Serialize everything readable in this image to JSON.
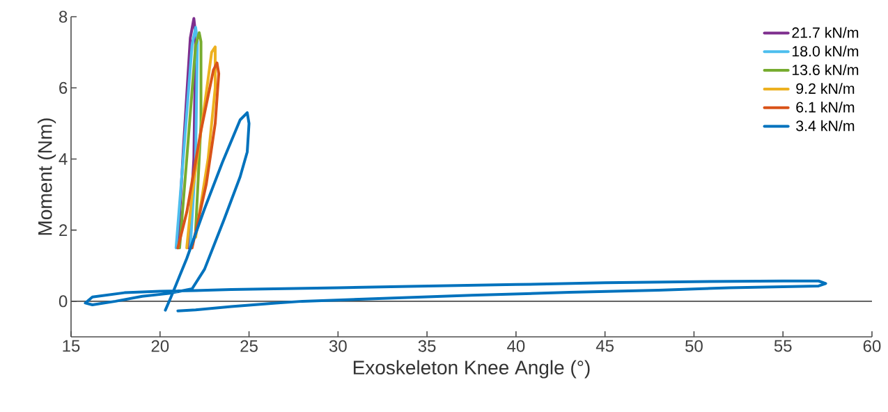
{
  "chart_data": {
    "type": "line",
    "xlabel": "Exoskeleton Knee Angle (°)",
    "ylabel": "Moment (Nm)",
    "xlim": [
      15,
      60
    ],
    "ylim": [
      -1,
      8
    ],
    "xticks": [
      15,
      20,
      25,
      30,
      35,
      40,
      45,
      50,
      55,
      60
    ],
    "yticks": [
      0,
      2,
      4,
      6,
      8
    ],
    "legend": "top right",
    "line_style": "solid",
    "ref_lines": [
      {
        "axis": "y",
        "value": 0,
        "color": "#4d4d4d"
      }
    ],
    "series": [
      {
        "name": "21.7 kN/m",
        "color": "#7e2f8e",
        "x": [
          21.0,
          21.3,
          21.7,
          21.9,
          22.0,
          21.9,
          21.6
        ],
        "values": [
          1.5,
          4.2,
          7.4,
          7.95,
          7.5,
          4.0,
          1.5
        ]
      },
      {
        "name": "18.0 kN/m",
        "color": "#4dbeee",
        "x": [
          20.9,
          21.3,
          21.8,
          22.0,
          22.1,
          22.0,
          21.7
        ],
        "values": [
          1.5,
          4.0,
          7.2,
          7.7,
          7.3,
          4.0,
          1.5
        ]
      },
      {
        "name": "13.6 kN/m",
        "color": "#77ac30",
        "x": [
          21.1,
          21.5,
          22.0,
          22.2,
          22.3,
          22.3,
          22.0
        ],
        "values": [
          1.5,
          4.0,
          7.2,
          7.55,
          7.3,
          5.0,
          2.0
        ]
      },
      {
        "name": "9.2 kN/m",
        "color": "#edb120",
        "x": [
          21.5,
          21.8,
          22.5,
          22.9,
          23.1,
          23.1,
          22.7,
          22.0
        ],
        "values": [
          1.5,
          3.0,
          5.5,
          7.0,
          7.15,
          6.0,
          4.0,
          1.8
        ]
      },
      {
        "name": "6.1 kN/m",
        "color": "#d95319",
        "x": [
          21.0,
          21.5,
          22.3,
          23.0,
          23.2,
          23.3,
          23.1,
          22.6,
          21.8
        ],
        "values": [
          1.5,
          2.5,
          4.8,
          6.5,
          6.7,
          6.4,
          5.0,
          3.3,
          1.5
        ]
      },
      {
        "name": "3.4 kN/m",
        "color": "#0072bd",
        "x": [
          20.3,
          20.6,
          21.5,
          22.5,
          23.5,
          24.5,
          24.9,
          25.0,
          24.9,
          24.5,
          23.6,
          22.5,
          21.8,
          20.5,
          19,
          17.5,
          16.2,
          15.8,
          16.2,
          18,
          20,
          22,
          24,
          30,
          34,
          40,
          45,
          50,
          55,
          57,
          57.4,
          57,
          52,
          48,
          43,
          37.5,
          32,
          28,
          26.5,
          24,
          22,
          21
        ],
        "values": [
          -0.25,
          0.1,
          1.2,
          2.6,
          3.9,
          5.1,
          5.3,
          5.0,
          4.2,
          3.5,
          2.3,
          0.9,
          0.35,
          0.22,
          0.14,
          0.0,
          -0.1,
          -0.05,
          0.12,
          0.24,
          0.28,
          0.3,
          0.33,
          0.38,
          0.42,
          0.47,
          0.52,
          0.55,
          0.57,
          0.57,
          0.5,
          0.43,
          0.38,
          0.31,
          0.25,
          0.17,
          0.07,
          0.0,
          -0.05,
          -0.15,
          -0.24,
          -0.27
        ]
      }
    ]
  }
}
